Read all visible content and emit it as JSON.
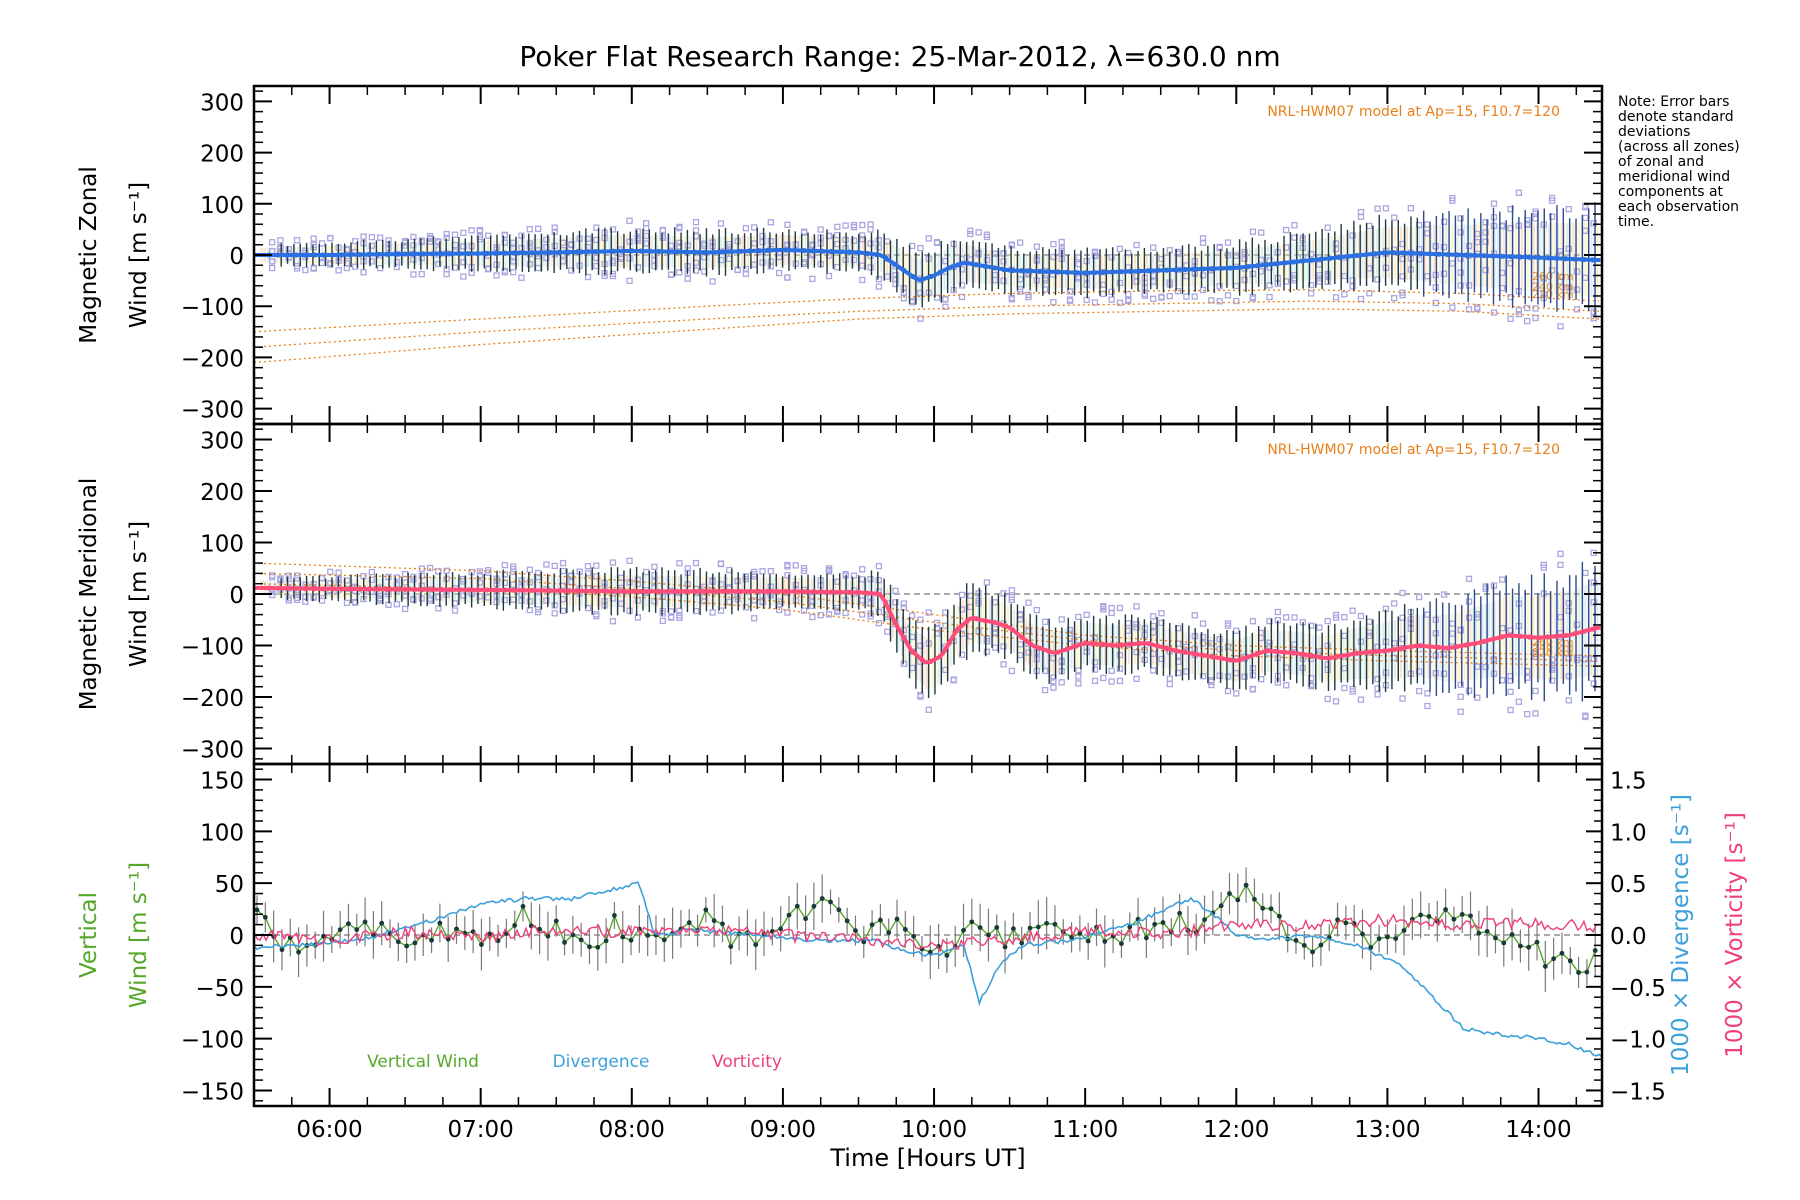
{
  "figure": {
    "title": "Poker Flat Research Range: 25-Mar-2012, λ=630.0 nm",
    "note": [
      "Note: Error bars",
      "denote standard",
      "deviations",
      "(across all zones)",
      "of zonal and",
      "meridional wind",
      "components at",
      "each observation",
      "time."
    ],
    "xlabel": "Time [Hours UT]",
    "model_label": "NRL-HWM07 model at Ap=15, F10.7=120"
  },
  "colors": {
    "zonal_mean": "#2b6fe0",
    "meridional_mean": "#ff4d7a",
    "model": "#e8801a",
    "samples": "#aaa6e0",
    "vertical": "#55a82a",
    "divergence": "#3d9fdb",
    "vorticity": "#ef3f78",
    "errorbar": "#1e3a3a"
  },
  "chart_data": [
    {
      "type": "line",
      "panel": "zonal",
      "ylabel": "Magnetic Zonal Wind [m s⁻¹]",
      "ylabel_lines": [
        "Magnetic Zonal",
        "Wind [m s⁻¹]"
      ],
      "xlim": [
        5.5,
        14.42
      ],
      "ylim": [
        -330,
        330
      ],
      "xticks": [
        6,
        7,
        8,
        9,
        10,
        11,
        12,
        13,
        14
      ],
      "xtick_labels": [
        "06:00",
        "07:00",
        "08:00",
        "09:00",
        "10:00",
        "11:00",
        "12:00",
        "13:00",
        "14:00"
      ],
      "yticks": [
        -300,
        -200,
        -100,
        0,
        100,
        200,
        300
      ],
      "ytick_labels": [
        "−300",
        "−200",
        "−100",
        "0",
        "100",
        "200",
        "300"
      ],
      "model_altitude_labels": [
        "260 km",
        "240 km",
        "220 km"
      ],
      "series": [
        {
          "role": "mean",
          "x": [
            5.5,
            6.0,
            6.5,
            7.0,
            7.5,
            8.0,
            8.5,
            9.0,
            9.5,
            9.65,
            9.8,
            9.9,
            10.0,
            10.1,
            10.2,
            10.3,
            10.5,
            11.0,
            11.5,
            12.0,
            12.5,
            13.0,
            13.5,
            14.0,
            14.4
          ],
          "y": [
            0,
            0,
            2,
            3,
            5,
            8,
            5,
            10,
            5,
            0,
            -30,
            -50,
            -40,
            -25,
            -15,
            -20,
            -30,
            -35,
            -30,
            -25,
            -10,
            5,
            0,
            -5,
            -10
          ]
        },
        {
          "role": "model-260km",
          "x": [
            5.5,
            7.0,
            8.5,
            9.5,
            10.5,
            11.5,
            12.5,
            13.5,
            14.4
          ],
          "y": [
            -150,
            -125,
            -100,
            -85,
            -75,
            -70,
            -68,
            -75,
            -90
          ]
        },
        {
          "role": "model-240km",
          "x": [
            5.5,
            7.0,
            8.5,
            9.5,
            10.5,
            11.5,
            12.5,
            13.5,
            14.4
          ],
          "y": [
            -180,
            -150,
            -125,
            -110,
            -100,
            -95,
            -90,
            -95,
            -110
          ]
        },
        {
          "role": "model-220km",
          "x": [
            5.5,
            7.0,
            8.5,
            9.5,
            10.5,
            11.5,
            12.5,
            13.5,
            14.4
          ],
          "y": [
            -210,
            -175,
            -145,
            -125,
            -115,
            -110,
            -105,
            -110,
            -125
          ]
        }
      ],
      "error_sd": [
        [
          5.5,
          20
        ],
        [
          7.0,
          35
        ],
        [
          8.0,
          45
        ],
        [
          9.5,
          40
        ],
        [
          9.9,
          60
        ],
        [
          10.5,
          45
        ],
        [
          11.5,
          45
        ],
        [
          12.5,
          55
        ],
        [
          13.3,
          80
        ],
        [
          14.4,
          105
        ]
      ]
    },
    {
      "type": "line",
      "panel": "meridional",
      "ylabel": "Magnetic Meridional Wind [m s⁻¹]",
      "ylabel_lines": [
        "Magnetic Meridional",
        "Wind [m s⁻¹]"
      ],
      "xlim": [
        5.5,
        14.42
      ],
      "ylim": [
        -330,
        330
      ],
      "xticks": [
        6,
        7,
        8,
        9,
        10,
        11,
        12,
        13,
        14
      ],
      "yticks": [
        -300,
        -200,
        -100,
        0,
        100,
        200,
        300
      ],
      "ytick_labels": [
        "−300",
        "−200",
        "−100",
        "0",
        "100",
        "200",
        "300"
      ],
      "model_altitude_labels": [
        "260 km",
        "240 km",
        "220 km"
      ],
      "series": [
        {
          "role": "mean",
          "x": [
            5.5,
            6.0,
            7.0,
            8.0,
            9.0,
            9.5,
            9.65,
            9.75,
            9.85,
            9.95,
            10.05,
            10.15,
            10.25,
            10.3,
            10.4,
            10.5,
            10.65,
            10.8,
            11.0,
            11.2,
            11.4,
            11.6,
            11.8,
            12.0,
            12.2,
            12.4,
            12.6,
            12.8,
            13.0,
            13.2,
            13.4,
            13.6,
            13.8,
            14.0,
            14.2,
            14.4
          ],
          "y": [
            12,
            10,
            8,
            5,
            5,
            3,
            0,
            -60,
            -110,
            -135,
            -120,
            -70,
            -45,
            -50,
            -55,
            -65,
            -100,
            -115,
            -95,
            -100,
            -95,
            -110,
            -120,
            -130,
            -110,
            -115,
            -125,
            -115,
            -110,
            -100,
            -105,
            -95,
            -80,
            -85,
            -80,
            -65
          ]
        },
        {
          "role": "model-260km",
          "x": [
            5.5,
            7.0,
            8.0,
            9.0,
            10.0,
            11.0,
            12.0,
            13.0,
            14.4
          ],
          "y": [
            60,
            45,
            25,
            0,
            -40,
            -80,
            -100,
            -110,
            -120
          ]
        },
        {
          "role": "model-240km",
          "x": [
            5.5,
            7.0,
            8.0,
            9.0,
            10.0,
            11.0,
            12.0,
            13.0,
            14.4
          ],
          "y": [
            40,
            30,
            10,
            -15,
            -55,
            -90,
            -110,
            -120,
            -130
          ]
        },
        {
          "role": "model-220km",
          "x": [
            5.5,
            7.0,
            8.0,
            9.0,
            10.0,
            11.0,
            12.0,
            13.0,
            14.4
          ],
          "y": [
            20,
            10,
            -5,
            -30,
            -70,
            -100,
            -120,
            -130,
            -140
          ]
        }
      ],
      "error_sd": [
        [
          5.5,
          20
        ],
        [
          7.0,
          35
        ],
        [
          8.0,
          45
        ],
        [
          9.5,
          35
        ],
        [
          10.0,
          75
        ],
        [
          10.5,
          60
        ],
        [
          11.5,
          55
        ],
        [
          12.5,
          60
        ],
        [
          13.3,
          90
        ],
        [
          14.4,
          130
        ]
      ]
    },
    {
      "type": "line",
      "panel": "vertical",
      "ylabel": "Vertical Wind [m s⁻¹]",
      "ylabel_lines": [
        "Vertical",
        "Wind [m s⁻¹]"
      ],
      "y2label": "1000 × Divergence [s⁻¹]",
      "y3label": "1000 × Vorticity [s⁻¹]",
      "xlim": [
        5.5,
        14.42
      ],
      "ylim": [
        -165,
        165
      ],
      "y2lim": [
        -1.65,
        1.65
      ],
      "xticks": [
        6,
        7,
        8,
        9,
        10,
        11,
        12,
        13,
        14
      ],
      "yticks": [
        -150,
        -100,
        -50,
        0,
        50,
        100,
        150
      ],
      "ytick_labels": [
        "−150",
        "−100",
        "−50",
        "0",
        "50",
        "100",
        "150"
      ],
      "y2ticks": [
        -1.5,
        -1.0,
        -0.5,
        0.0,
        0.5,
        1.0,
        1.5
      ],
      "y2tick_labels": [
        "−1.5",
        "−1.0",
        "−0.5",
        "0.0",
        "0.5",
        "1.0",
        "1.5"
      ],
      "legend": [
        "Vertical Wind",
        "Divergence",
        "Vorticity"
      ],
      "legend_placement": "bottom-left",
      "series": [
        {
          "name": "Vertical Wind",
          "axis": "left",
          "x": [
            5.5,
            5.7,
            5.9,
            6.1,
            6.3,
            6.5,
            6.7,
            6.9,
            7.1,
            7.3,
            7.5,
            7.7,
            7.9,
            8.1,
            8.3,
            8.5,
            8.7,
            8.9,
            9.1,
            9.3,
            9.5,
            9.7,
            9.9,
            10.1,
            10.3,
            10.5,
            10.7,
            10.9,
            11.1,
            11.3,
            11.5,
            11.7,
            11.9,
            12.0,
            12.1,
            12.3,
            12.5,
            12.7,
            12.9,
            13.1,
            13.3,
            13.5,
            13.7,
            13.9,
            14.1,
            14.3,
            14.42
          ],
          "y": [
            20,
            -10,
            -5,
            0,
            10,
            -10,
            5,
            10,
            -5,
            20,
            5,
            -10,
            10,
            -5,
            0,
            15,
            -10,
            5,
            20,
            35,
            -10,
            10,
            -5,
            -10,
            5,
            -5,
            10,
            0,
            5,
            0,
            15,
            10,
            20,
            40,
            35,
            10,
            -5,
            10,
            -10,
            5,
            25,
            20,
            5,
            -15,
            -20,
            -30,
            -5
          ]
        },
        {
          "name": "Divergence",
          "axis": "right",
          "x": [
            5.5,
            5.8,
            6.2,
            6.7,
            7.0,
            7.3,
            7.6,
            7.9,
            8.05,
            8.15,
            8.4,
            8.8,
            9.2,
            9.6,
            9.8,
            10.0,
            10.2,
            10.3,
            10.45,
            10.6,
            10.9,
            11.3,
            11.7,
            11.9,
            12.0,
            12.2,
            12.5,
            12.8,
            12.95,
            13.1,
            13.3,
            13.5,
            13.7,
            14.0,
            14.2,
            14.42
          ],
          "y": [
            -0.12,
            -0.1,
            -0.05,
            0.15,
            0.3,
            0.35,
            0.35,
            0.45,
            0.5,
            0.0,
            0.05,
            0.0,
            -0.05,
            -0.05,
            -0.15,
            -0.2,
            -0.1,
            -0.65,
            -0.25,
            -0.1,
            -0.05,
            0.1,
            0.35,
            0.15,
            0.0,
            -0.05,
            0.0,
            -0.1,
            -0.2,
            -0.3,
            -0.6,
            -0.9,
            -0.95,
            -1.0,
            -1.05,
            -1.18
          ]
        },
        {
          "name": "Vorticity",
          "axis": "right",
          "x": [
            5.5,
            6.0,
            6.5,
            7.0,
            7.5,
            8.0,
            8.5,
            9.0,
            9.5,
            10.0,
            10.5,
            11.0,
            11.5,
            12.0,
            12.5,
            13.0,
            13.3,
            13.6,
            13.9,
            14.2,
            14.42
          ],
          "y": [
            0.0,
            -0.05,
            0.03,
            -0.02,
            0.05,
            0.03,
            0.04,
            0.0,
            -0.05,
            -0.1,
            -0.05,
            0.05,
            0.0,
            0.1,
            0.08,
            0.15,
            0.12,
            0.1,
            0.12,
            0.1,
            0.08
          ]
        }
      ]
    }
  ]
}
